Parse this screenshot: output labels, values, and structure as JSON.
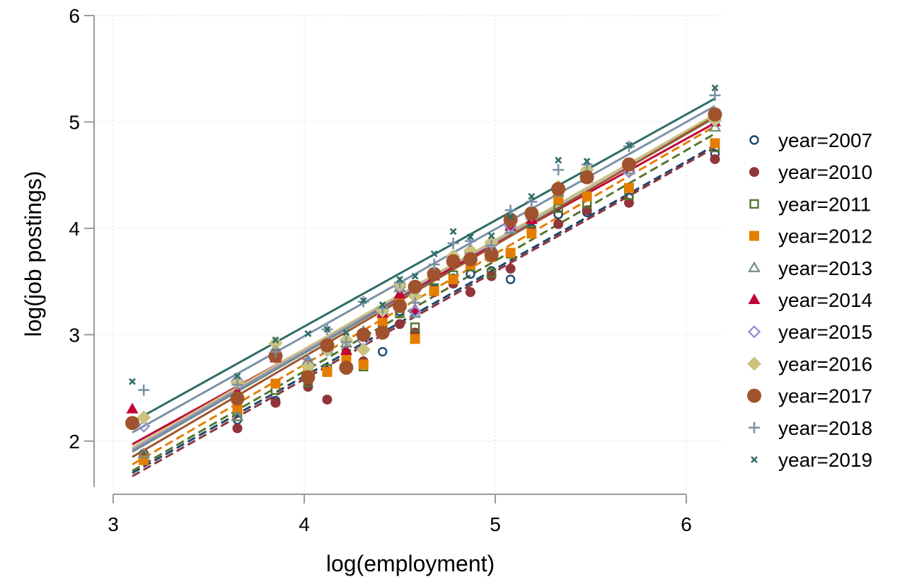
{
  "chart_data": {
    "type": "scatter",
    "title": "",
    "xlabel": "log(employment)",
    "ylabel": "log(job postings)",
    "xlim": [
      3,
      6.2
    ],
    "ylim": [
      1.5,
      6
    ],
    "xticks": [
      3,
      4,
      5,
      6
    ],
    "yticks": [
      2,
      3,
      4,
      5,
      6
    ],
    "x_tick_labels": [
      "3",
      "4",
      "5",
      "6"
    ],
    "y_tick_labels": [
      "2",
      "3",
      "4",
      "5",
      "6"
    ],
    "grid": true,
    "legend_position": "right",
    "x": [
      3.1,
      3.16,
      3.65,
      3.85,
      4.02,
      4.12,
      4.22,
      4.31,
      4.41,
      4.5,
      4.58,
      4.68,
      4.78,
      4.87,
      4.98,
      5.08,
      5.19,
      5.33,
      5.48,
      5.7,
      6.15
    ],
    "series": [
      {
        "name": "year=2007",
        "color": "#1a476f",
        "marker": "hollow-circle",
        "line": "dashed",
        "values": [
          null,
          1.84,
          2.2,
          2.38,
          2.67,
          2.66,
          2.78,
          2.74,
          2.84,
          3.22,
          2.99,
          3.43,
          3.53,
          3.57,
          3.6,
          3.52,
          4.0,
          4.13,
          4.15,
          4.29,
          4.7
        ],
        "fit": [
          1.7,
          4.78
        ]
      },
      {
        "name": "year=2010",
        "color": "#90353b",
        "marker": "filled-circle",
        "line": "dashed",
        "values": [
          null,
          1.88,
          2.12,
          2.36,
          2.51,
          2.39,
          2.71,
          2.75,
          3.0,
          3.1,
          3.02,
          3.4,
          3.48,
          3.4,
          3.55,
          3.62,
          3.97,
          4.04,
          4.17,
          4.24,
          4.65
        ],
        "fit": [
          1.67,
          4.76
        ]
      },
      {
        "name": "year=2011",
        "color": "#55752f",
        "marker": "hollow-square",
        "line": "dashed",
        "values": [
          null,
          1.85,
          2.23,
          2.48,
          2.55,
          2.68,
          2.82,
          2.7,
          3.08,
          3.2,
          3.07,
          3.44,
          3.56,
          3.64,
          3.58,
          3.76,
          3.98,
          4.19,
          4.23,
          4.31,
          4.76
        ],
        "fit": [
          1.72,
          4.89
        ]
      },
      {
        "name": "year=2012",
        "color": "#e37e00",
        "marker": "filled-square",
        "line": "dashed",
        "values": [
          null,
          1.82,
          2.31,
          2.54,
          2.69,
          2.65,
          2.79,
          2.72,
          3.13,
          3.32,
          2.96,
          3.41,
          3.52,
          3.66,
          3.73,
          3.77,
          3.95,
          4.27,
          4.3,
          4.38,
          4.8
        ],
        "fit": [
          1.78,
          4.96
        ]
      },
      {
        "name": "year=2013",
        "color": "#6e8e84",
        "marker": "hollow-triangle",
        "line": "solid",
        "values": [
          null,
          1.88,
          2.23,
          2.87,
          2.76,
          2.86,
          2.92,
          3.03,
          3.23,
          3.44,
          3.2,
          3.57,
          3.7,
          3.76,
          3.83,
          3.99,
          4.12,
          4.34,
          4.47,
          4.55,
          4.95
        ],
        "fit": [
          1.9,
          5.04
        ]
      },
      {
        "name": "year=2014",
        "color": "#c10534",
        "marker": "filled-triangle",
        "line": "solid",
        "values": [
          2.3,
          null,
          2.46,
          2.78,
          2.73,
          2.9,
          2.85,
          3.0,
          3.2,
          3.38,
          3.24,
          3.55,
          3.69,
          3.8,
          3.81,
          4.02,
          4.08,
          4.38,
          4.5,
          4.58,
          5.0
        ],
        "fit": [
          1.97,
          4.99
        ]
      },
      {
        "name": "year=2015",
        "color": "#938dd2",
        "marker": "hollow-diamond",
        "line": "solid",
        "values": [
          null,
          2.14,
          2.57,
          2.83,
          2.7,
          2.85,
          2.95,
          2.94,
          3.22,
          3.45,
          3.22,
          3.56,
          3.68,
          3.77,
          3.86,
          4.02,
          4.12,
          4.35,
          4.49,
          4.53,
          5.01
        ],
        "fit": [
          1.92,
          5.07
        ]
      },
      {
        "name": "year=2016",
        "color": "#cac27e",
        "marker": "filled-diamond",
        "line": "solid",
        "values": [
          null,
          2.22,
          2.55,
          2.92,
          2.7,
          2.86,
          2.95,
          2.86,
          3.23,
          3.47,
          3.36,
          3.58,
          3.74,
          3.79,
          3.87,
          4.07,
          4.15,
          4.39,
          4.55,
          4.6,
          5.02
        ],
        "fit": [
          1.94,
          5.07
        ]
      },
      {
        "name": "year=2017",
        "color": "#a0522d",
        "marker": "big-filled-circle",
        "line": "solid",
        "values": [
          2.17,
          null,
          2.4,
          2.8,
          2.6,
          2.9,
          2.69,
          3.0,
          3.02,
          3.27,
          3.45,
          3.57,
          3.69,
          3.71,
          3.75,
          4.08,
          4.14,
          4.37,
          4.48,
          4.6,
          5.07
        ],
        "fit": [
          1.85,
          5.05
        ]
      },
      {
        "name": "year=2018",
        "color": "#7b92a8",
        "marker": "plus",
        "line": "solid",
        "values": [
          null,
          2.48,
          2.53,
          2.84,
          2.77,
          3.05,
          2.93,
          3.31,
          3.25,
          3.49,
          3.3,
          3.66,
          3.86,
          3.88,
          3.84,
          4.17,
          4.25,
          4.55,
          4.6,
          4.77,
          5.25
        ],
        "fit": [
          2.08,
          5.15
        ]
      },
      {
        "name": "year=2019",
        "color": "#2d6d66",
        "marker": "x",
        "line": "solid",
        "values": [
          2.56,
          null,
          2.61,
          2.95,
          3.01,
          3.05,
          3.02,
          3.32,
          3.28,
          3.52,
          3.55,
          3.76,
          3.97,
          3.92,
          3.93,
          4.11,
          4.3,
          4.64,
          4.63,
          4.78,
          5.32
        ],
        "fit": [
          2.18,
          5.22
        ]
      }
    ]
  }
}
